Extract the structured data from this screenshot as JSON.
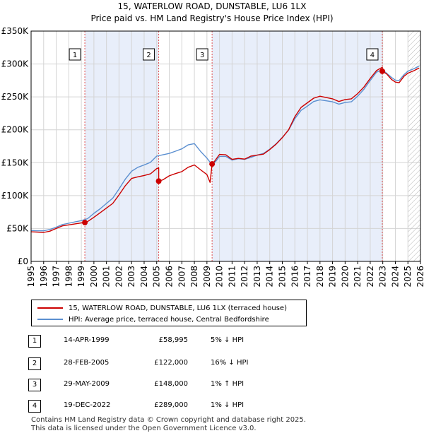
{
  "chart_title": "15, WATERLOW ROAD, DUNSTABLE, LU6 1LX",
  "chart_subtitle": "Price paid vs. HM Land Registry's House Price Index (HPI)",
  "colors": {
    "property": "#cc0000",
    "hpi": "#5b8fd0",
    "shade": "#e8eefa",
    "marker_line": "#e05050"
  },
  "chart_data": {
    "type": "line",
    "title": "15, WATERLOW ROAD, DUNSTABLE, LU6 1LX",
    "subtitle": "Price paid vs. HM Land Registry's House Price Index (HPI)",
    "xlim": [
      1995,
      2026
    ],
    "ylim": [
      0,
      350000
    ],
    "y_ticks": [
      0,
      50000,
      100000,
      150000,
      200000,
      250000,
      300000,
      350000
    ],
    "y_tick_labels": [
      "£0",
      "£50K",
      "£100K",
      "£150K",
      "£200K",
      "£250K",
      "£300K",
      "£350K"
    ],
    "x_ticks": [
      1995,
      1996,
      1997,
      1998,
      1999,
      2000,
      2001,
      2002,
      2003,
      2004,
      2005,
      2006,
      2007,
      2008,
      2009,
      2010,
      2011,
      2012,
      2013,
      2014,
      2015,
      2016,
      2017,
      2018,
      2019,
      2020,
      2021,
      2022,
      2023,
      2024,
      2025,
      2026
    ],
    "x_tick_labels": [
      "1995",
      "1996",
      "1997",
      "1998",
      "1999",
      "2000",
      "2001",
      "2002",
      "2003",
      "2004",
      "2005",
      "2006",
      "2007",
      "2008",
      "2009",
      "2010",
      "2011",
      "2012",
      "2013",
      "2014",
      "2015",
      "2016",
      "2017",
      "2018",
      "2019",
      "2020",
      "2021",
      "2022",
      "2023",
      "2024",
      "2025",
      "2026"
    ],
    "grid": true,
    "shaded_ranges": [
      [
        1999.28,
        2005.16
      ],
      [
        2009.41,
        2022.96
      ]
    ],
    "hatched_from": 2025.0,
    "series": [
      {
        "name": "15, WATERLOW ROAD, DUNSTABLE, LU6 1LX (terraced house)",
        "color": "#cc0000",
        "x": [
          1995,
          1995.5,
          1996,
          1996.5,
          1997,
          1997.5,
          1998,
          1998.5,
          1999,
          1999.28,
          1999.28,
          1999.5,
          2000,
          2000.5,
          2001,
          2001.5,
          2002,
          2002.5,
          2003,
          2003.5,
          2004,
          2004.5,
          2005,
          2005.16,
          2005.16,
          2005.5,
          2006,
          2006.5,
          2007,
          2007.5,
          2008,
          2008.5,
          2009,
          2009.25,
          2009.41,
          2009.41,
          2009.6,
          2010,
          2010.5,
          2011,
          2011.5,
          2012,
          2012.5,
          2013,
          2013.5,
          2014,
          2014.5,
          2015,
          2015.5,
          2016,
          2016.5,
          2017,
          2017.5,
          2018,
          2018.5,
          2019,
          2019.5,
          2020,
          2020.5,
          2021,
          2021.5,
          2022,
          2022.5,
          2022.96,
          2022.96,
          2023.3,
          2023.7,
          2024,
          2024.3,
          2024.7,
          2025,
          2025.5,
          2025.9
        ],
        "y": [
          45000,
          44500,
          44000,
          46000,
          50000,
          54000,
          55500,
          57000,
          58500,
          58995,
          58995,
          60500,
          67000,
          74000,
          81000,
          88000,
          101000,
          115000,
          126000,
          128500,
          130500,
          133000,
          141000,
          142000,
          122000,
          124000,
          130000,
          133500,
          136500,
          143000,
          146500,
          139000,
          132000,
          120000,
          148000,
          148000,
          152000,
          162500,
          162000,
          155000,
          156500,
          155500,
          160000,
          161500,
          163000,
          170000,
          178000,
          188000,
          200000,
          220000,
          234000,
          241000,
          248000,
          251000,
          249000,
          247000,
          243000,
          246000,
          247000,
          255000,
          265000,
          278000,
          290000,
          295000,
          289000,
          285000,
          276500,
          272500,
          271500,
          281500,
          286000,
          290000,
          294000
        ]
      },
      {
        "name": "HPI: Average price, terraced house, Central Bedfordshire",
        "color": "#5b8fd0",
        "x": [
          1995,
          1995.5,
          1996,
          1996.5,
          1997,
          1997.5,
          1998,
          1998.5,
          1999,
          1999.5,
          2000,
          2000.5,
          2001,
          2001.5,
          2002,
          2002.5,
          2003,
          2003.5,
          2004,
          2004.5,
          2005,
          2005.5,
          2006,
          2006.5,
          2007,
          2007.5,
          2008,
          2008.5,
          2009,
          2009.4,
          2009.7,
          2010,
          2010.5,
          2011,
          2011.5,
          2012,
          2012.5,
          2013,
          2013.5,
          2014,
          2014.5,
          2015,
          2015.5,
          2016,
          2016.5,
          2017,
          2017.5,
          2018,
          2018.5,
          2019,
          2019.5,
          2020,
          2020.5,
          2021,
          2021.5,
          2022,
          2022.5,
          2022.96,
          2023.3,
          2023.7,
          2024,
          2024.3,
          2024.7,
          2025,
          2025.5,
          2025.9
        ],
        "y": [
          47000,
          46500,
          46500,
          48500,
          52000,
          56000,
          58000,
          60000,
          62000,
          65000,
          73000,
          80000,
          88000,
          96000,
          110000,
          125000,
          137000,
          143000,
          146500,
          150500,
          160000,
          162000,
          164000,
          167500,
          171000,
          177000,
          179000,
          167000,
          157000,
          147000,
          152000,
          159500,
          159500,
          154000,
          156000,
          155000,
          158000,
          161500,
          164000,
          170500,
          178500,
          188500,
          199500,
          217000,
          229500,
          236000,
          243000,
          245500,
          244000,
          242500,
          239000,
          241500,
          242500,
          251000,
          261500,
          275000,
          287500,
          291500,
          286000,
          279500,
          275500,
          275000,
          284000,
          289000,
          293000,
          297000
        ]
      }
    ],
    "transactions": [
      {
        "label": "1",
        "x": 1999.28,
        "price": 58995
      },
      {
        "label": "2",
        "x": 2005.16,
        "price": 122000
      },
      {
        "label": "3",
        "x": 2009.41,
        "price": 148000
      },
      {
        "label": "4",
        "x": 2022.96,
        "price": 289000
      }
    ]
  },
  "legend": {
    "property": "15, WATERLOW ROAD, DUNSTABLE, LU6 1LX (terraced house)",
    "hpi": "HPI: Average price, terraced house, Central Bedfordshire"
  },
  "transactions_table": [
    {
      "label": "1",
      "date": "14-APR-1999",
      "price": "£58,995",
      "hpi": "5% ↓ HPI"
    },
    {
      "label": "2",
      "date": "28-FEB-2005",
      "price": "£122,000",
      "hpi": "16% ↓ HPI"
    },
    {
      "label": "3",
      "date": "29-MAY-2009",
      "price": "£148,000",
      "hpi": "1% ↑ HPI"
    },
    {
      "label": "4",
      "date": "19-DEC-2022",
      "price": "£289,000",
      "hpi": "1% ↓ HPI"
    }
  ],
  "footer": {
    "line1": "Contains HM Land Registry data © Crown copyright and database right 2025.",
    "line2": "This data is licensed under the Open Government Licence v3.0."
  }
}
